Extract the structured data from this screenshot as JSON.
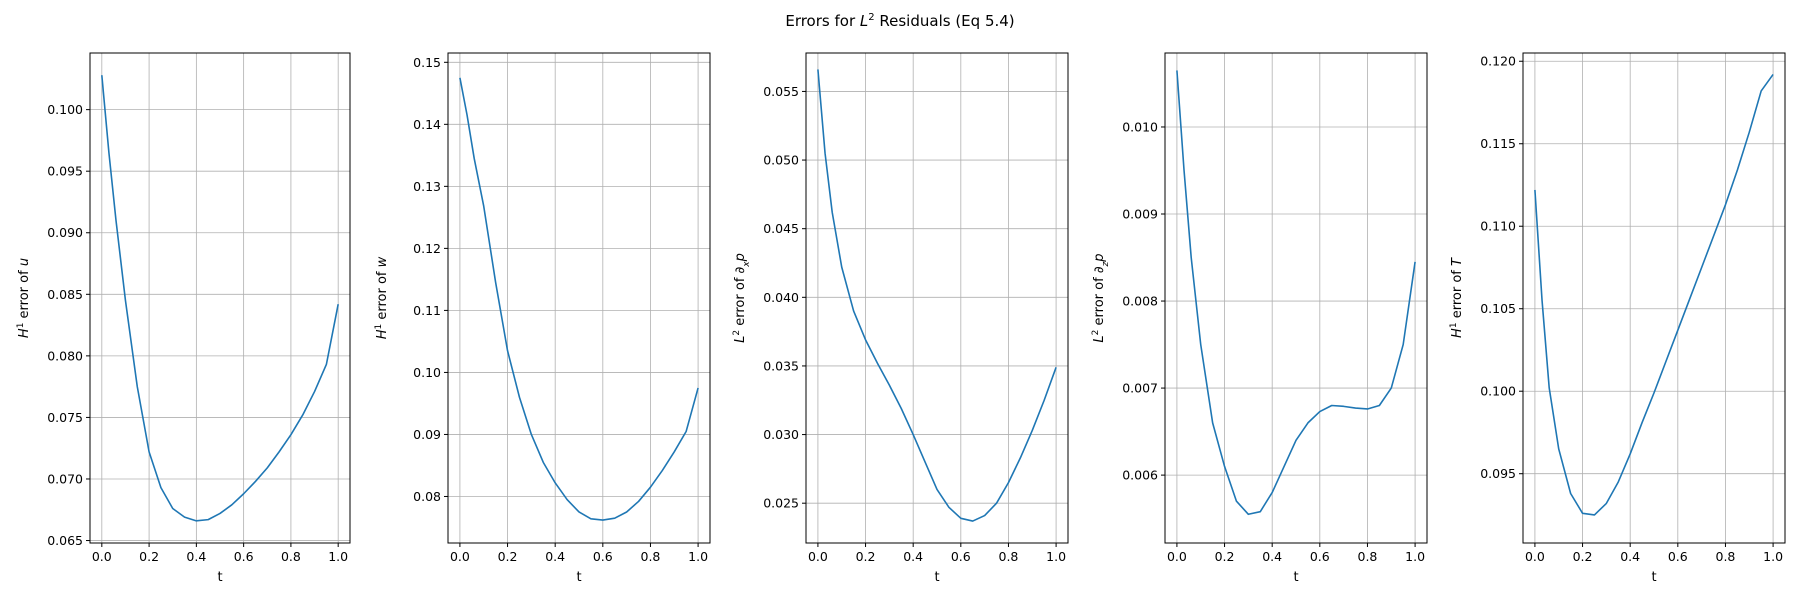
{
  "figure": {
    "title_prefix": "Errors for ",
    "title_main": "L",
    "title_sup": "2",
    "title_suffix": " Residuals (Eq 5.4)"
  },
  "chart_data": [
    {
      "type": "line",
      "xlabel": "t",
      "ylabel": {
        "pre": "H",
        "sup": "1",
        "post": " error of ",
        "var": "u",
        "sub": ""
      },
      "xlim": [
        -0.05,
        1.05
      ],
      "ylim": [
        0.0648,
        0.1046
      ],
      "xticks": [
        0.0,
        0.2,
        0.4,
        0.6,
        0.8,
        1.0
      ],
      "xtick_labels": [
        "0.0",
        "0.2",
        "0.4",
        "0.6",
        "0.8",
        "1.0"
      ],
      "yticks": [
        0.065,
        0.07,
        0.075,
        0.08,
        0.085,
        0.09,
        0.095,
        0.1
      ],
      "ytick_labels": [
        "0.065",
        "0.070",
        "0.075",
        "0.080",
        "0.085",
        "0.090",
        "0.095",
        "0.100"
      ],
      "grid": true,
      "color": "#1f77b4",
      "x": [
        0.0,
        0.03,
        0.06,
        0.1,
        0.15,
        0.2,
        0.25,
        0.3,
        0.35,
        0.4,
        0.45,
        0.5,
        0.55,
        0.6,
        0.65,
        0.7,
        0.75,
        0.8,
        0.85,
        0.9,
        0.95,
        1.0
      ],
      "y": [
        0.1028,
        0.0965,
        0.091,
        0.0845,
        0.0775,
        0.0722,
        0.0693,
        0.0676,
        0.0669,
        0.0666,
        0.0667,
        0.0672,
        0.0679,
        0.0688,
        0.0698,
        0.0709,
        0.0722,
        0.0736,
        0.0752,
        0.0771,
        0.0793,
        0.0842
      ]
    },
    {
      "type": "line",
      "xlabel": "t",
      "ylabel": {
        "pre": "H",
        "sup": "1",
        "post": " error of ",
        "var": "w",
        "sub": ""
      },
      "xlim": [
        -0.05,
        1.05
      ],
      "ylim": [
        0.0725,
        0.1515
      ],
      "xticks": [
        0.0,
        0.2,
        0.4,
        0.6,
        0.8,
        1.0
      ],
      "xtick_labels": [
        "0.0",
        "0.2",
        "0.4",
        "0.6",
        "0.8",
        "1.0"
      ],
      "yticks": [
        0.08,
        0.09,
        0.1,
        0.11,
        0.12,
        0.13,
        0.14,
        0.15
      ],
      "ytick_labels": [
        "0.08",
        "0.09",
        "0.10",
        "0.11",
        "0.12",
        "0.13",
        "0.14",
        "0.15"
      ],
      "grid": true,
      "color": "#1f77b4",
      "x": [
        0.0,
        0.03,
        0.06,
        0.1,
        0.15,
        0.2,
        0.25,
        0.3,
        0.35,
        0.4,
        0.45,
        0.5,
        0.55,
        0.6,
        0.65,
        0.7,
        0.75,
        0.8,
        0.85,
        0.9,
        0.95,
        1.0
      ],
      "y": [
        0.1475,
        0.1415,
        0.1345,
        0.1268,
        0.1145,
        0.1035,
        0.096,
        0.09,
        0.0855,
        0.0822,
        0.0795,
        0.0775,
        0.0764,
        0.0762,
        0.0765,
        0.0775,
        0.0792,
        0.0815,
        0.0842,
        0.0872,
        0.0905,
        0.0975
      ]
    },
    {
      "type": "line",
      "xlabel": "t",
      "ylabel": {
        "pre": "L",
        "sup": "2",
        "post": " error of ",
        "var": "∂",
        "sub": "x",
        "tail": "p"
      },
      "xlim": [
        -0.05,
        1.05
      ],
      "ylim": [
        0.0221,
        0.0578
      ],
      "xticks": [
        0.0,
        0.2,
        0.4,
        0.6,
        0.8,
        1.0
      ],
      "xtick_labels": [
        "0.0",
        "0.2",
        "0.4",
        "0.6",
        "0.8",
        "1.0"
      ],
      "yticks": [
        0.025,
        0.03,
        0.035,
        0.04,
        0.045,
        0.05,
        0.055
      ],
      "ytick_labels": [
        "0.025",
        "0.030",
        "0.035",
        "0.040",
        "0.045",
        "0.050",
        "0.055"
      ],
      "grid": true,
      "color": "#1f77b4",
      "x": [
        0.0,
        0.03,
        0.06,
        0.1,
        0.15,
        0.2,
        0.25,
        0.3,
        0.35,
        0.4,
        0.45,
        0.5,
        0.55,
        0.6,
        0.65,
        0.7,
        0.75,
        0.8,
        0.85,
        0.9,
        0.95,
        1.0
      ],
      "y": [
        0.0566,
        0.0505,
        0.0462,
        0.0422,
        0.039,
        0.0369,
        0.0352,
        0.0336,
        0.0319,
        0.03,
        0.028,
        0.026,
        0.0247,
        0.0239,
        0.0237,
        0.0241,
        0.025,
        0.0265,
        0.0283,
        0.0303,
        0.0325,
        0.0349
      ]
    },
    {
      "type": "line",
      "xlabel": "t",
      "ylabel": {
        "pre": "L",
        "sup": "2",
        "post": " error of ",
        "var": "∂",
        "sub": "z",
        "tail": "p"
      },
      "xlim": [
        -0.05,
        1.05
      ],
      "ylim": [
        0.00522,
        0.01085
      ],
      "xticks": [
        0.0,
        0.2,
        0.4,
        0.6,
        0.8,
        1.0
      ],
      "xtick_labels": [
        "0.0",
        "0.2",
        "0.4",
        "0.6",
        "0.8",
        "1.0"
      ],
      "yticks": [
        0.006,
        0.007,
        0.008,
        0.009,
        0.01
      ],
      "ytick_labels": [
        "0.006",
        "0.007",
        "0.008",
        "0.009",
        "0.010"
      ],
      "grid": true,
      "color": "#1f77b4",
      "x": [
        0.0,
        0.03,
        0.06,
        0.1,
        0.15,
        0.2,
        0.25,
        0.3,
        0.35,
        0.4,
        0.45,
        0.5,
        0.55,
        0.6,
        0.65,
        0.7,
        0.75,
        0.8,
        0.85,
        0.9,
        0.95,
        1.0
      ],
      "y": [
        0.01065,
        0.0095,
        0.0085,
        0.0075,
        0.0066,
        0.0061,
        0.0057,
        0.00555,
        0.00558,
        0.0058,
        0.0061,
        0.0064,
        0.0066,
        0.00673,
        0.0068,
        0.00679,
        0.00677,
        0.00676,
        0.0068,
        0.007,
        0.0075,
        0.00845
      ]
    },
    {
      "type": "line",
      "xlabel": "t",
      "ylabel": {
        "pre": "H",
        "sup": "1",
        "post": " error of ",
        "var": "T",
        "sub": ""
      },
      "xlim": [
        -0.05,
        1.05
      ],
      "ylim": [
        0.0908,
        0.1205
      ],
      "xticks": [
        0.0,
        0.2,
        0.4,
        0.6,
        0.8,
        1.0
      ],
      "xtick_labels": [
        "0.0",
        "0.2",
        "0.4",
        "0.6",
        "0.8",
        "1.0"
      ],
      "yticks": [
        0.095,
        0.1,
        0.105,
        0.11,
        0.115,
        0.12
      ],
      "ytick_labels": [
        "0.095",
        "0.100",
        "0.105",
        "0.110",
        "0.115",
        "0.120"
      ],
      "grid": true,
      "color": "#1f77b4",
      "x": [
        0.0,
        0.03,
        0.06,
        0.1,
        0.15,
        0.2,
        0.25,
        0.3,
        0.35,
        0.4,
        0.45,
        0.5,
        0.55,
        0.6,
        0.65,
        0.7,
        0.75,
        0.8,
        0.85,
        0.9,
        0.95,
        1.0
      ],
      "y": [
        0.1122,
        0.1055,
        0.1002,
        0.0965,
        0.0938,
        0.0926,
        0.0925,
        0.0932,
        0.0945,
        0.0962,
        0.0981,
        0.0999,
        0.1018,
        0.1037,
        0.1056,
        0.1075,
        0.1094,
        0.1113,
        0.1134,
        0.1157,
        0.1182,
        0.1192
      ]
    }
  ]
}
